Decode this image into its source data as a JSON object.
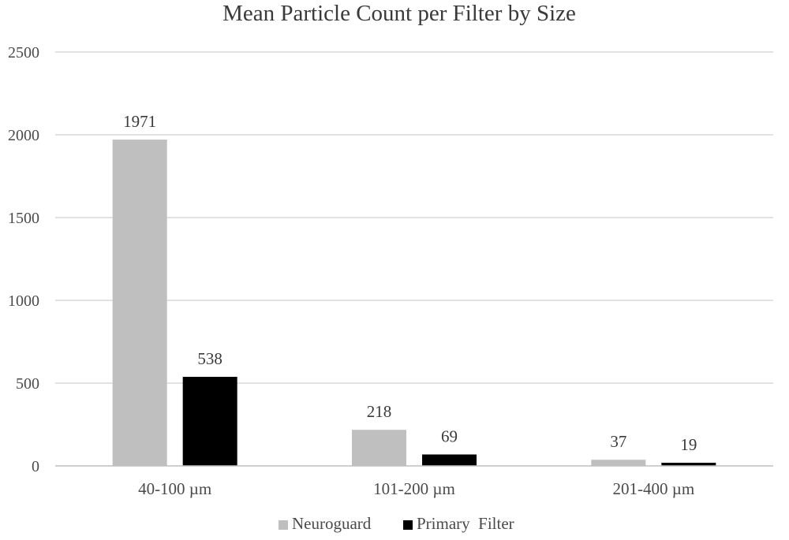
{
  "chart_data": {
    "type": "bar",
    "title": "Mean Particle Count per Filter by Size",
    "xlabel": "",
    "ylabel": "",
    "categories": [
      "40-100 µm",
      "101-200 µm",
      "201-400 µm"
    ],
    "series": [
      {
        "name": "Neuroguard",
        "values": [
          1971,
          218,
          37
        ],
        "color": "#bfbfbf"
      },
      {
        "name": "Primary  Filter",
        "values": [
          538,
          69,
          19
        ],
        "color": "#000000"
      }
    ],
    "ylim": [
      0,
      2500
    ],
    "yticks": [
      0,
      500,
      1000,
      1500,
      2000,
      2500
    ],
    "grid": true,
    "legend_position": "bottom",
    "data_labels": true
  }
}
